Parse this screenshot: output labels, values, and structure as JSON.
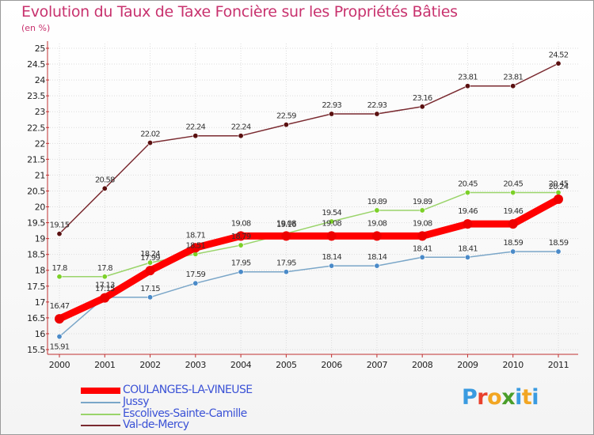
{
  "header": {
    "title": "Evolution du Taux de Taxe Foncière sur les Propriétés Bâties",
    "unit": "(en %)"
  },
  "logo": {
    "text": "Proxiti",
    "letters": [
      "P",
      "r",
      "o",
      "x",
      "i",
      "t",
      "i"
    ],
    "colors": [
      "#3a9be0",
      "#e9402c",
      "#f2a623",
      "#4a9e2a",
      "#3a9be0",
      "#f2a623",
      "#3a9be0"
    ]
  },
  "chart_data": {
    "type": "line",
    "title": "Evolution du Taux de Taxe Foncière sur les Propriétés Bâties",
    "ylabel": "(en %)",
    "xlabel": "",
    "x": [
      "2000",
      "2001",
      "2002",
      "2003",
      "2004",
      "2005",
      "2006",
      "2007",
      "2008",
      "2009",
      "2010",
      "2011"
    ],
    "ylim": [
      15.5,
      25
    ],
    "yticks": [
      "15.5",
      "16",
      "16.5",
      "17",
      "17.5",
      "18",
      "18.5",
      "19",
      "19.5",
      "20",
      "20.5",
      "21",
      "21.5",
      "22",
      "22.5",
      "23",
      "23.5",
      "24",
      "24.5",
      "25"
    ],
    "grid": true,
    "legend_position": "bottom-left",
    "series": [
      {
        "name": "Val-de-Mercy",
        "color": "#7a2a30",
        "marker": "#5a1010",
        "values": [
          19.15,
          20.58,
          22.02,
          22.24,
          22.24,
          22.59,
          22.93,
          22.93,
          23.16,
          23.81,
          23.81,
          24.52
        ],
        "labels": [
          "19.15",
          "20.58",
          "22.02",
          "22.24",
          "22.24",
          "22.59",
          "22.93",
          "22.93",
          "23.16",
          "23.81",
          "23.81",
          "24.52"
        ]
      },
      {
        "name": "Escolives-Sainte-Camille",
        "color": "#9ad46a",
        "marker": "#7cd028",
        "values": [
          17.8,
          17.8,
          18.24,
          18.51,
          18.79,
          19.16,
          19.54,
          19.89,
          19.89,
          20.45,
          20.45,
          20.45
        ],
        "labels": [
          "17.8",
          "17.8",
          "18.24",
          "18.51",
          "18.79",
          "19.16",
          "19.54",
          "19.89",
          "19.89",
          "20.45",
          "20.45",
          "20.45"
        ]
      },
      {
        "name": "Jussy",
        "color": "#7aa6c8",
        "marker": "#4a8ac8",
        "values": [
          15.91,
          17.15,
          17.15,
          17.59,
          17.95,
          17.95,
          18.14,
          18.14,
          18.41,
          18.41,
          18.59,
          18.59
        ],
        "labels": [
          "15.91",
          "17.15",
          "17.15",
          "17.59",
          "17.95",
          "17.95",
          "18.14",
          "18.14",
          "18.41",
          "18.41",
          "18.59",
          "18.59"
        ]
      },
      {
        "name": "COULANGES-LA-VINEUSE",
        "color": "#ff0000",
        "marker": "#ee0000",
        "values": [
          16.47,
          17.13,
          17.99,
          18.71,
          19.08,
          19.08,
          19.08,
          19.08,
          19.08,
          19.46,
          19.46,
          20.24
        ],
        "labels": [
          "16.47",
          "17.13",
          "17.99",
          "18.71",
          "19.08",
          "19.08",
          "19.08",
          "19.08",
          "19.08",
          "19.46",
          "19.46",
          "20.24"
        ]
      }
    ]
  },
  "legend": {
    "items": [
      {
        "label": "COULANGES-LA-VINEUSE",
        "color": "#ff0000"
      },
      {
        "label": "Jussy",
        "color": "#7aa6c8"
      },
      {
        "label": "Escolives-Sainte-Camille",
        "color": "#9ad46a"
      },
      {
        "label": "Val-de-Mercy",
        "color": "#7a2a30"
      }
    ]
  }
}
